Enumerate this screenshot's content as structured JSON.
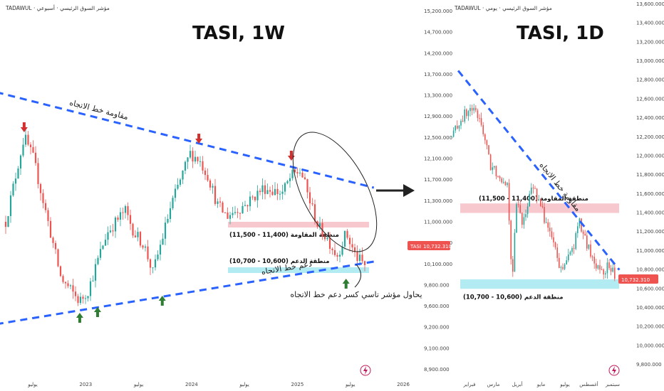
{
  "colors": {
    "up": "#26a69a",
    "down": "#ef5350",
    "trendline": "#2962ff",
    "resistance_zone": "#f8c8cf",
    "support_zone": "#b2ebf2",
    "marker_down": "#d32f2f",
    "marker_up": "#2e7d32",
    "price_badge": "#ef5350",
    "axis_text": "#444444"
  },
  "icons": [
    "arrow-right-icon",
    "lightning-icon",
    "down-marker-icon",
    "up-marker-icon"
  ],
  "chart_data": [
    {
      "type": "candlestick",
      "title": "TASI, 1W",
      "source_label": "TADAWUL · مؤشر السوق الرئيسي · أسبوعي",
      "ylim": [
        8900,
        15200
      ],
      "y_ticks": [
        "15,200.000",
        "14,700.000",
        "14,200.000",
        "13,700.000",
        "13,300.000",
        "12,900.000",
        "12,500.000",
        "12,100.000",
        "11,700.000",
        "11,300.000",
        "11,000.000",
        "10,400.000",
        "10,100.000",
        "9,800.000",
        "9,600.000",
        "9,200.000",
        "9,100.000",
        "8,900.000"
      ],
      "x_ticks": [
        "يوليو",
        "2023",
        "يوليو",
        "2024",
        "يوليو",
        "2025",
        "يوليو",
        "2026"
      ],
      "price_label": "TASI",
      "last_price": "10,732.310",
      "path": [
        [
          "2022-06",
          11500
        ],
        [
          "2022-08",
          13000
        ],
        [
          "2022-09",
          12600
        ],
        [
          "2022-11",
          11200
        ],
        [
          "2022-12",
          10500
        ],
        [
          "2023-02",
          10100
        ],
        [
          "2023-03",
          10300
        ],
        [
          "2023-05",
          11300
        ],
        [
          "2023-07",
          11700
        ],
        [
          "2023-08",
          11300
        ],
        [
          "2023-09",
          11100
        ],
        [
          "2023-10",
          10600
        ],
        [
          "2023-12",
          11800
        ],
        [
          "2024-02",
          12700
        ],
        [
          "2024-03",
          12600
        ],
        [
          "2024-04",
          12300
        ],
        [
          "2024-05",
          11800
        ],
        [
          "2024-06",
          11600
        ],
        [
          "2024-08",
          11800
        ],
        [
          "2024-10",
          12100
        ],
        [
          "2024-12",
          12000
        ],
        [
          "2025-01",
          12300
        ],
        [
          "2025-02",
          12400
        ],
        [
          "2025-03",
          11900
        ],
        [
          "2025-04",
          11400
        ],
        [
          "2025-05",
          11200
        ],
        [
          "2025-06",
          10900
        ],
        [
          "2025-07",
          11300
        ],
        [
          "2025-08",
          10900
        ],
        [
          "2025-09",
          10732
        ]
      ],
      "zones": [
        {
          "kind": "resistance",
          "label": "منطقة المقاومة (11,400 - 11,500)",
          "low": 11400,
          "high": 11500
        },
        {
          "kind": "support",
          "label": "منطقة الدعم (10,600 - 10,700)",
          "low": 10600,
          "high": 10700
        }
      ],
      "trendlines": [
        {
          "label": "مقاومة خط الاتجاه",
          "from": [
            "2022-05",
            13780
          ],
          "to": [
            "2025-10",
            12100
          ]
        },
        {
          "label": "دعم خط الاتجاه",
          "from": [
            "2022-05",
            9700
          ],
          "to": [
            "2025-10",
            10800
          ]
        }
      ],
      "markers": [
        {
          "type": "down",
          "date": "2022-08",
          "value": 13000
        },
        {
          "type": "down",
          "date": "2024-03",
          "value": 12800
        },
        {
          "type": "down",
          "date": "2025-01",
          "value": 12500
        },
        {
          "type": "up",
          "date": "2023-02",
          "value": 10100
        },
        {
          "type": "up",
          "date": "2023-04",
          "value": 10200
        },
        {
          "type": "up",
          "date": "2023-11",
          "value": 10400
        },
        {
          "type": "up",
          "date": "2025-07",
          "value": 10700
        }
      ],
      "annotation": "يحاول مؤشر تاسي كسر دعم خط الاتجاه"
    },
    {
      "type": "candlestick",
      "title": "TASI, 1D",
      "source_label": "TADAWUL · مؤشر السوق الرئيسي · يومي",
      "ylim": [
        9800,
        13600
      ],
      "y_ticks": [
        "13,600.000",
        "13,400.000",
        "13,200.000",
        "13,000.000",
        "12,800.000",
        "12,600.000",
        "12,400.000",
        "12,200.000",
        "12,000.000",
        "11,800.000",
        "11,600.000",
        "11,400.000",
        "11,200.000",
        "11,000.000",
        "10,800.000",
        "10,600.000",
        "10,400.000",
        "10,200.000",
        "10,000.000",
        "9,800.000"
      ],
      "x_ticks": [
        "فبراير",
        "مارس",
        "أبريل",
        "مايو",
        "يوليو",
        "أغسطس",
        "سبتمبر"
      ],
      "last_price": "10,732.310",
      "path": [
        [
          "2025-01-05",
          12200
        ],
        [
          "2025-01-20",
          12400
        ],
        [
          "2025-02-05",
          12500
        ],
        [
          "2025-02-20",
          12350
        ],
        [
          "2025-03-05",
          11900
        ],
        [
          "2025-03-20",
          11800
        ],
        [
          "2025-04-01",
          11700
        ],
        [
          "2025-04-08",
          10700
        ],
        [
          "2025-04-15",
          11500
        ],
        [
          "2025-04-25",
          11300
        ],
        [
          "2025-05-10",
          11700
        ],
        [
          "2025-05-25",
          11400
        ],
        [
          "2025-06-10",
          11100
        ],
        [
          "2025-06-20",
          10800
        ],
        [
          "2025-07-01",
          10900
        ],
        [
          "2025-07-10",
          11000
        ],
        [
          "2025-07-20",
          11300
        ],
        [
          "2025-07-30",
          11100
        ],
        [
          "2025-08-10",
          10900
        ],
        [
          "2025-08-25",
          10800
        ],
        [
          "2025-09-05",
          10850
        ],
        [
          "2025-09-12",
          10732
        ]
      ],
      "zones": [
        {
          "kind": "resistance",
          "label": "منطقة المقاومة (11,400 - 11,500)",
          "low": 11400,
          "high": 11500
        },
        {
          "kind": "support",
          "label": "منطقة الدعم (10,600 - 10,700)",
          "low": 10600,
          "high": 10700
        }
      ],
      "trendlines": [
        {
          "label": "مقاومة خط الاتجاه",
          "from": [
            "2025-01-15",
            12900
          ],
          "to": [
            "2025-09-20",
            10800
          ]
        }
      ]
    }
  ]
}
